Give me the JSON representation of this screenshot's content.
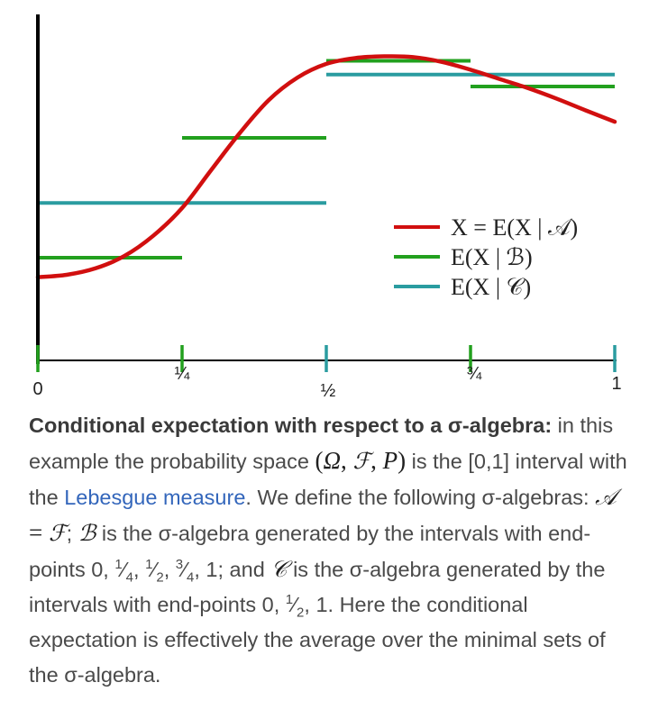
{
  "chart_data": {
    "type": "line",
    "xlim": [
      0,
      1
    ],
    "ylim": [
      0,
      1
    ],
    "x_ticks": [
      {
        "value": 0,
        "label": "0"
      },
      {
        "value": 0.25,
        "label": "¼"
      },
      {
        "value": 0.5,
        "label": "½"
      },
      {
        "value": 0.75,
        "label": "¾"
      },
      {
        "value": 1,
        "label": "1"
      }
    ],
    "legend_position": "center-right",
    "series": [
      {
        "name": "X = E(X | 𝒜)",
        "kind": "curve",
        "color": "#d10f0f",
        "x": [
          0,
          0.05,
          0.1,
          0.15,
          0.2,
          0.25,
          0.3,
          0.35,
          0.4,
          0.45,
          0.5,
          0.55,
          0.6,
          0.65,
          0.7,
          0.75,
          0.8,
          0.85,
          0.9,
          0.95,
          1
        ],
        "y": [
          0.243,
          0.25,
          0.269,
          0.305,
          0.364,
          0.445,
          0.555,
          0.664,
          0.76,
          0.826,
          0.866,
          0.883,
          0.888,
          0.886,
          0.872,
          0.849,
          0.822,
          0.795,
          0.764,
          0.73,
          0.697
        ]
      },
      {
        "name": "E(X | ℬ)",
        "kind": "step",
        "color": "#22a01e",
        "segments": [
          [
            0,
            0.25,
            0.3
          ],
          [
            0.25,
            0.5,
            0.65
          ],
          [
            0.5,
            0.75,
            0.875
          ],
          [
            0.75,
            1,
            0.8
          ]
        ]
      },
      {
        "name": "E(X | 𝒞)",
        "kind": "step",
        "color": "#2a9ca0",
        "segments": [
          [
            0,
            0.5,
            0.46
          ],
          [
            0.5,
            1,
            0.835
          ]
        ]
      }
    ]
  },
  "legend": {
    "items": [
      {
        "label": "X = E(X | 𝒜)",
        "color": "#d10f0f"
      },
      {
        "label": "E(X | ℬ)",
        "color": "#22a01e"
      },
      {
        "label": "E(X | 𝒞)",
        "color": "#2a9ca0"
      }
    ]
  },
  "caption": {
    "bold": "Conditional expectation with respect to a σ-algebra:",
    "t1": " in this example the probability space ",
    "m_open": "(",
    "m_omega": "Ω",
    "m_comma1": ", ",
    "m_F": "ℱ",
    "m_comma2": ", ",
    "m_P": "P",
    "m_close": ")",
    "t2": " is the [0,1] interval with the ",
    "link": "Lebesgue measure",
    "t3": ". We define the following σ-algebras: ",
    "m_A": "𝒜",
    "m_eq": " = ",
    "m_F2": "ℱ",
    "t4": "; ",
    "m_B": "ℬ",
    "t5": " is the σ-algebra generated by the intervals with end-points 0, ",
    "f1n": "1",
    "f1d": "4",
    "t6": ", ",
    "f2n": "1",
    "f2d": "2",
    "t7": ", ",
    "f3n": "3",
    "f3d": "4",
    "t8": ", 1; and ",
    "m_C": "𝒞",
    "t9": " is the σ-algebra generated by the intervals with end-points 0, ",
    "f4n": "1",
    "f4d": "2",
    "t10": ", 1. Here the conditional expectation is effectively the average over the minimal sets of the σ-algebra."
  }
}
